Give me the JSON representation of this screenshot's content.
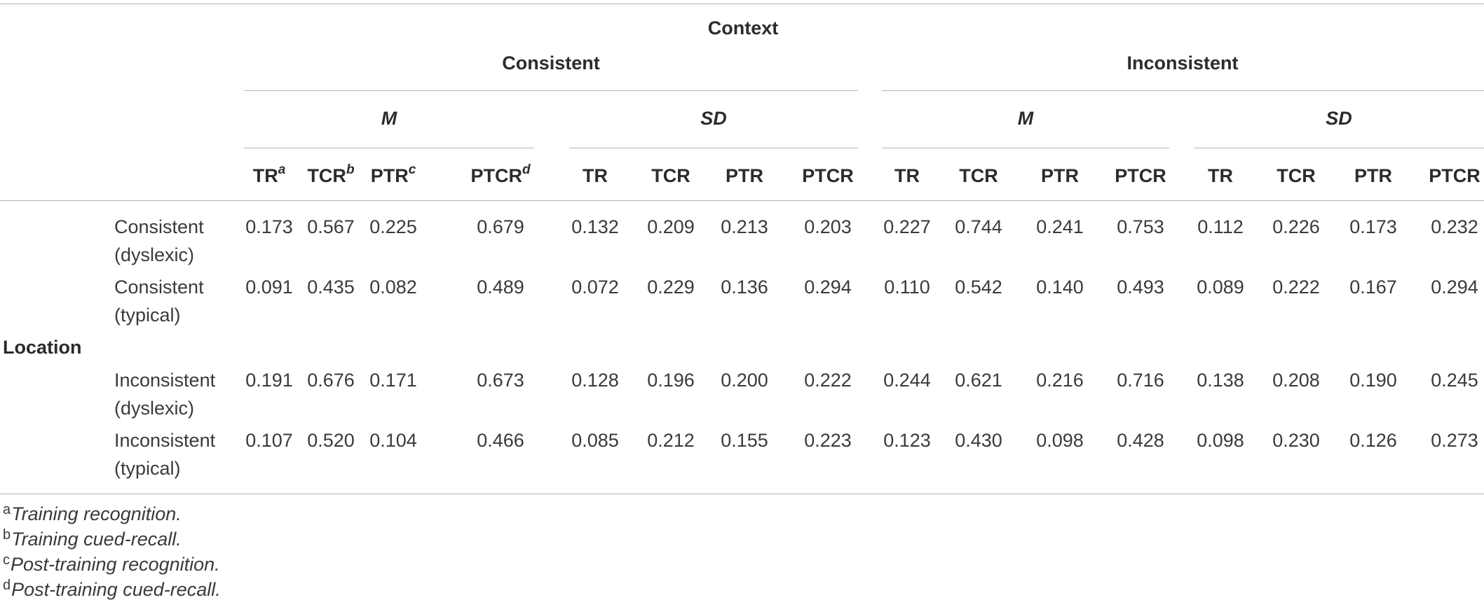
{
  "header": {
    "context": "Context",
    "consistent": "Consistent",
    "inconsistent": "Inconsistent",
    "m": "M",
    "sd": "SD",
    "cols_marked": [
      {
        "label": "TR",
        "mark": "a"
      },
      {
        "label": "TCR",
        "mark": "b"
      },
      {
        "label": "PTR",
        "mark": "c"
      },
      {
        "label": "PTCR",
        "mark": "d"
      }
    ],
    "cols": [
      "TR",
      "TCR",
      "PTR",
      "PTCR"
    ]
  },
  "row_group_label": "Location",
  "rows": [
    {
      "line1": "Consistent",
      "line2": "(dyslexic)",
      "values": [
        "0.173",
        "0.567",
        "0.225",
        "0.679",
        "0.132",
        "0.209",
        "0.213",
        "0.203",
        "0.227",
        "0.744",
        "0.241",
        "0.753",
        "0.112",
        "0.226",
        "0.173",
        "0.232"
      ]
    },
    {
      "line1": "Consistent",
      "line2": "(typical)",
      "values": [
        "0.091",
        "0.435",
        "0.082",
        "0.489",
        "0.072",
        "0.229",
        "0.136",
        "0.294",
        "0.110",
        "0.542",
        "0.140",
        "0.493",
        "0.089",
        "0.222",
        "0.167",
        "0.294"
      ]
    },
    {
      "line1": "Inconsistent",
      "line2": "(dyslexic)",
      "values": [
        "0.191",
        "0.676",
        "0.171",
        "0.673",
        "0.128",
        "0.196",
        "0.200",
        "0.222",
        "0.244",
        "0.621",
        "0.216",
        "0.716",
        "0.138",
        "0.208",
        "0.190",
        "0.245"
      ]
    },
    {
      "line1": "Inconsistent",
      "line2": "(typical)",
      "values": [
        "0.107",
        "0.520",
        "0.104",
        "0.466",
        "0.085",
        "0.212",
        "0.155",
        "0.223",
        "0.123",
        "0.430",
        "0.098",
        "0.428",
        "0.098",
        "0.230",
        "0.126",
        "0.273"
      ]
    }
  ],
  "footnotes": [
    {
      "mark": "a",
      "text": "Training recognition."
    },
    {
      "mark": "b",
      "text": "Training cued-recall."
    },
    {
      "mark": "c",
      "text": "Post-training recognition."
    },
    {
      "mark": "d",
      "text": "Post-training cued-recall."
    }
  ]
}
